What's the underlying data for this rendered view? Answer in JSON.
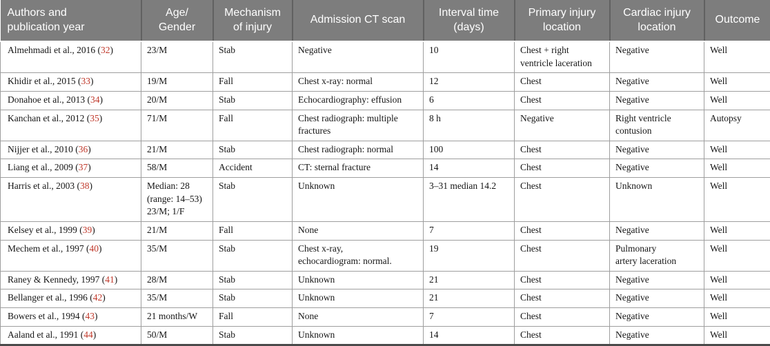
{
  "colors": {
    "header_bg": "#7d7d7d",
    "header_text": "#ffffff",
    "ref_red": "#c0392b",
    "body_border": "#9e9e9e"
  },
  "table": {
    "columns": [
      {
        "label": "Authors and\npublication year"
      },
      {
        "label": "Age/\nGender"
      },
      {
        "label": "Mechanism\nof injury"
      },
      {
        "label": "Admission CT scan"
      },
      {
        "label": "Interval time\n(days)"
      },
      {
        "label": "Primary injury\nlocation"
      },
      {
        "label": "Cardiac injury\nlocation"
      },
      {
        "label": "Outcome"
      }
    ],
    "rows": [
      {
        "authors": "Almehmadi et al., 2016",
        "ref": "32",
        "age_gender": "23/M",
        "mechanism": "Stab",
        "ct_scan": "Negative",
        "interval": "10",
        "primary_injury": "Chest + right\nventricle laceration",
        "cardiac_injury": "Negative",
        "outcome": "Well"
      },
      {
        "authors": "Khidir et al., 2015",
        "ref": "33",
        "age_gender": "19/M",
        "mechanism": "Fall",
        "ct_scan": "Chest x-ray: normal",
        "interval": "12",
        "primary_injury": "Chest",
        "cardiac_injury": "Negative",
        "outcome": "Well"
      },
      {
        "authors": "Donahoe et al., 2013",
        "ref": "34",
        "age_gender": "20/M",
        "mechanism": "Stab",
        "ct_scan": "Echocardiography: effusion",
        "interval": "6",
        "primary_injury": "Chest",
        "cardiac_injury": "Negative",
        "outcome": "Well"
      },
      {
        "authors": "Kanchan et al., 2012",
        "ref": "35",
        "age_gender": "71/M",
        "mechanism": "Fall",
        "ct_scan": "Chest radiograph: multiple\nfractures",
        "interval": "8 h",
        "primary_injury": "Negative",
        "cardiac_injury": "Right ventricle\ncontusion",
        "outcome": "Autopsy"
      },
      {
        "authors": "Nijjer et al., 2010",
        "ref": "36",
        "age_gender": "21/M",
        "mechanism": "Stab",
        "ct_scan": "Chest radiograph: normal",
        "interval": "100",
        "primary_injury": "Chest",
        "cardiac_injury": "Negative",
        "outcome": "Well"
      },
      {
        "authors": "Liang et al., 2009",
        "ref": "37",
        "age_gender": "58/M",
        "mechanism": "Accident",
        "ct_scan": "CT: sternal fracture",
        "interval": "14",
        "primary_injury": "Chest",
        "cardiac_injury": "Negative",
        "outcome": "Well"
      },
      {
        "authors": "Harris et al., 2003",
        "ref": "38",
        "age_gender": "Median: 28\n(range: 14–53)\n23/M; 1/F",
        "mechanism": "Stab",
        "ct_scan": "Unknown",
        "interval": "3–31 median 14.2",
        "primary_injury": "Chest",
        "cardiac_injury": "Unknown",
        "outcome": "Well"
      },
      {
        "authors": "Kelsey et al., 1999",
        "ref": "39",
        "age_gender": "21/M",
        "mechanism": "Fall",
        "ct_scan": "None",
        "interval": "7",
        "primary_injury": "Chest",
        "cardiac_injury": "Negative",
        "outcome": "Well"
      },
      {
        "authors": "Mechem et al., 1997",
        "ref": "40",
        "age_gender": "35/M",
        "mechanism": "Stab",
        "ct_scan": "Chest x-ray,\nechocardiogram: normal.",
        "interval": "19",
        "primary_injury": "Chest",
        "cardiac_injury": "Pulmonary\nartery laceration",
        "outcome": "Well"
      },
      {
        "authors": "Raney & Kennedy, 1997",
        "ref": "41",
        "age_gender": "28/M",
        "mechanism": "Stab",
        "ct_scan": "Unknown",
        "interval": "21",
        "primary_injury": "Chest",
        "cardiac_injury": "Negative",
        "outcome": "Well"
      },
      {
        "authors": "Bellanger et al., 1996",
        "ref": "42",
        "age_gender": "35/M",
        "mechanism": "Stab",
        "ct_scan": "Unknown",
        "interval": "21",
        "primary_injury": "Chest",
        "cardiac_injury": "Negative",
        "outcome": "Well"
      },
      {
        "authors": "Bowers et al., 1994",
        "ref": "43",
        "age_gender": "21 months/W",
        "mechanism": "Fall",
        "ct_scan": "None",
        "interval": "7",
        "primary_injury": "Chest",
        "cardiac_injury": "Negative",
        "outcome": "Well"
      },
      {
        "authors": "Aaland et al., 1991",
        "ref": "44",
        "age_gender": "50/M",
        "mechanism": "Stab",
        "ct_scan": "Unknown",
        "interval": "14",
        "primary_injury": "Chest",
        "cardiac_injury": "Negative",
        "outcome": "Well"
      }
    ]
  }
}
